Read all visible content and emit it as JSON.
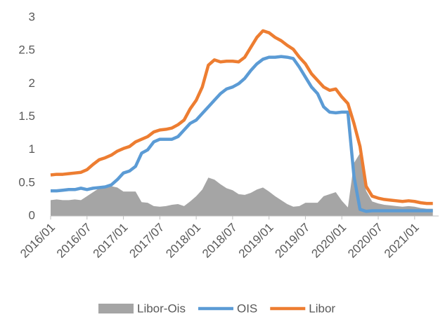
{
  "chart_data": {
    "type": "line",
    "x": [
      "2016/01",
      "2016/02",
      "2016/03",
      "2016/04",
      "2016/05",
      "2016/06",
      "2016/07",
      "2016/08",
      "2016/09",
      "2016/10",
      "2016/11",
      "2016/12",
      "2017/01",
      "2017/02",
      "2017/03",
      "2017/04",
      "2017/05",
      "2017/06",
      "2017/07",
      "2017/08",
      "2017/09",
      "2017/10",
      "2017/11",
      "2017/12",
      "2018/01",
      "2018/02",
      "2018/03",
      "2018/04",
      "2018/05",
      "2018/06",
      "2018/07",
      "2018/08",
      "2018/09",
      "2018/10",
      "2018/11",
      "2018/12",
      "2019/01",
      "2019/02",
      "2019/03",
      "2019/04",
      "2019/05",
      "2019/06",
      "2019/07",
      "2019/08",
      "2019/09",
      "2019/10",
      "2019/11",
      "2019/12",
      "2020/01",
      "2020/02",
      "2020/03",
      "2020/04",
      "2020/05",
      "2020/06",
      "2020/07",
      "2020/08",
      "2020/09",
      "2020/10",
      "2020/11",
      "2020/12",
      "2021/01",
      "2021/02",
      "2021/03",
      "2021/04"
    ],
    "xticks": [
      "2016/01",
      "2016/07",
      "2017/01",
      "2017/07",
      "2018/01",
      "2018/07",
      "2019/01",
      "2019/07",
      "2020/01",
      "2020/07",
      "2021/01"
    ],
    "ylim": [
      0,
      3
    ],
    "yticks": [
      0,
      0.5,
      1,
      1.5,
      2,
      2.5,
      3
    ],
    "legend": "bottom",
    "series": [
      {
        "name": "Libor-Ois",
        "type": "area",
        "color": "#a5a5a5",
        "values": [
          0.24,
          0.25,
          0.24,
          0.24,
          0.25,
          0.24,
          0.3,
          0.36,
          0.42,
          0.44,
          0.45,
          0.43,
          0.37,
          0.37,
          0.37,
          0.21,
          0.2,
          0.15,
          0.14,
          0.15,
          0.17,
          0.18,
          0.15,
          0.22,
          0.3,
          0.4,
          0.58,
          0.55,
          0.48,
          0.42,
          0.39,
          0.33,
          0.32,
          0.35,
          0.4,
          0.43,
          0.37,
          0.3,
          0.24,
          0.18,
          0.14,
          0.15,
          0.2,
          0.2,
          0.2,
          0.3,
          0.33,
          0.36,
          0.23,
          0.13,
          0.8,
          0.95,
          0.38,
          0.22,
          0.19,
          0.17,
          0.16,
          0.15,
          0.14,
          0.15,
          0.14,
          0.12,
          0.11,
          0.11
        ]
      },
      {
        "name": "OIS",
        "type": "line",
        "color": "#5b9bd5",
        "values": [
          0.38,
          0.38,
          0.39,
          0.4,
          0.4,
          0.42,
          0.4,
          0.42,
          0.43,
          0.44,
          0.47,
          0.55,
          0.65,
          0.68,
          0.75,
          0.95,
          1.0,
          1.12,
          1.16,
          1.16,
          1.16,
          1.2,
          1.3,
          1.4,
          1.45,
          1.55,
          1.65,
          1.75,
          1.85,
          1.92,
          1.95,
          2.0,
          2.08,
          2.2,
          2.3,
          2.37,
          2.4,
          2.4,
          2.41,
          2.4,
          2.38,
          2.25,
          2.1,
          1.95,
          1.85,
          1.65,
          1.57,
          1.56,
          1.57,
          1.57,
          0.6,
          0.1,
          0.07,
          0.08,
          0.08,
          0.08,
          0.08,
          0.08,
          0.08,
          0.08,
          0.08,
          0.08,
          0.08,
          0.08
        ]
      },
      {
        "name": "Libor",
        "type": "line",
        "color": "#ed7d31",
        "values": [
          0.62,
          0.63,
          0.63,
          0.64,
          0.65,
          0.66,
          0.7,
          0.78,
          0.85,
          0.88,
          0.92,
          0.98,
          1.02,
          1.05,
          1.12,
          1.16,
          1.2,
          1.27,
          1.3,
          1.31,
          1.33,
          1.38,
          1.45,
          1.62,
          1.75,
          1.95,
          2.28,
          2.36,
          2.33,
          2.34,
          2.34,
          2.33,
          2.4,
          2.55,
          2.7,
          2.8,
          2.77,
          2.7,
          2.65,
          2.58,
          2.52,
          2.4,
          2.3,
          2.15,
          2.05,
          1.95,
          1.9,
          1.92,
          1.8,
          1.7,
          1.4,
          1.05,
          0.45,
          0.3,
          0.27,
          0.25,
          0.24,
          0.23,
          0.22,
          0.23,
          0.22,
          0.2,
          0.19,
          0.19
        ]
      }
    ]
  }
}
